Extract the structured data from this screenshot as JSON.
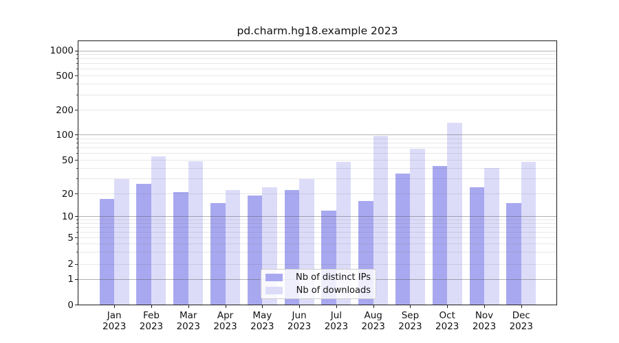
{
  "title": "pd.charm.hg18.example 2023",
  "chart_data": {
    "type": "bar",
    "title": "pd.charm.hg18.example 2023",
    "categories": [
      "Jan",
      "Feb",
      "Mar",
      "Apr",
      "May",
      "Jun",
      "Jul",
      "Aug",
      "Sep",
      "Oct",
      "Nov",
      "Dec"
    ],
    "category_year": "2023",
    "series": [
      {
        "name": "Nb of distinct IPs",
        "color": "#a8a8f0",
        "values": [
          17,
          26,
          21,
          15,
          19,
          22,
          12,
          16,
          35,
          43,
          24,
          15
        ]
      },
      {
        "name": "Nb of downloads",
        "color": "#dcdcf9",
        "values": [
          30,
          55,
          49,
          22,
          24,
          30,
          48,
          97,
          68,
          140,
          40,
          48
        ]
      }
    ],
    "yscale": "symlog-like",
    "y_tick_labels": [
      "0",
      "1",
      "2",
      "5",
      "10",
      "20",
      "50",
      "100",
      "200",
      "500",
      "1000"
    ],
    "y_tick_values": [
      0,
      1,
      2,
      5,
      10,
      20,
      50,
      100,
      200,
      500,
      1000
    ],
    "ylim": [
      0,
      1200
    ],
    "grid": "both",
    "legend_position": "lower-center",
    "colors": {
      "major_grid": "#b0b0b0",
      "minor_grid": "#e7e7e7",
      "axis": "#1a1a1a",
      "text": "#111111",
      "background": "#ffffff"
    }
  }
}
